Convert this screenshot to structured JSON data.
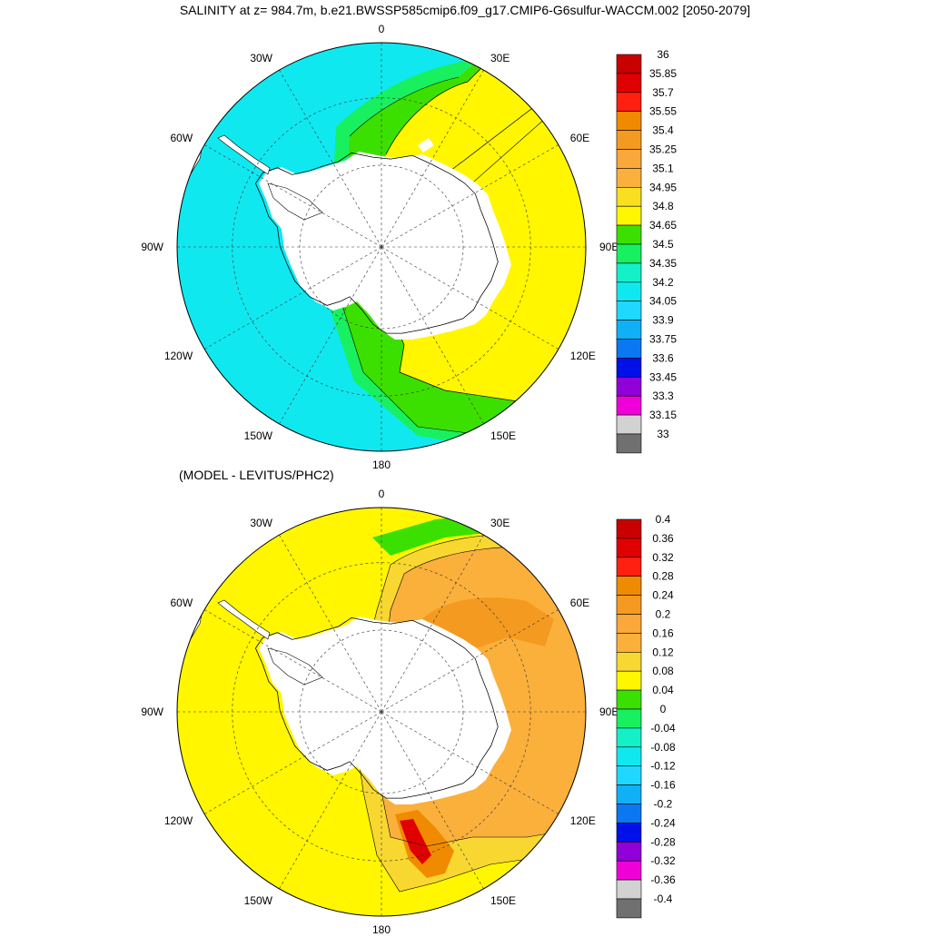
{
  "title": "SALINITY at z= 984.7m, b.e21.BWSSP585cmip6.f09_g17.CMIP6-G6sulfur-WACCM.002 [2050-2079]",
  "subtitle": "(MODEL - LEVITUS/PHC2)",
  "longitude_labels": [
    "0",
    "30E",
    "60E",
    "90E",
    "120E",
    "150E",
    "180",
    "150W",
    "120W",
    "90W",
    "60W",
    "30W"
  ],
  "maps": [
    {
      "name": "salinity",
      "projection": "south-polar-stereographic",
      "colorbar": {
        "labels": [
          "36",
          "35.85",
          "35.7",
          "35.55",
          "35.4",
          "35.25",
          "35.1",
          "34.95",
          "34.8",
          "34.65",
          "34.5",
          "34.35",
          "34.2",
          "34.05",
          "33.9",
          "33.75",
          "33.6",
          "33.45",
          "33.3",
          "33.15",
          "33"
        ],
        "colors": [
          "#c80000",
          "#e00000",
          "#ff2010",
          "#f08a00",
          "#f59a20",
          "#fba83a",
          "#fbb03c",
          "#f8e020",
          "#fff600",
          "#3ce000",
          "#18f060",
          "#14f0c8",
          "#10e8f0",
          "#20d8ff",
          "#10b0f8",
          "#0a78f0",
          "#0010e8",
          "#9000d8",
          "#f000d8",
          "#d2d2d2",
          "#707070"
        ]
      }
    },
    {
      "name": "difference",
      "projection": "south-polar-stereographic",
      "colorbar": {
        "labels": [
          "0.4",
          "0.36",
          "0.32",
          "0.28",
          "0.24",
          "0.2",
          "0.16",
          "0.12",
          "0.08",
          "0.04",
          "0",
          "-0.04",
          "-0.08",
          "-0.12",
          "-0.16",
          "-0.2",
          "-0.24",
          "-0.28",
          "-0.32",
          "-0.36",
          "-0.4"
        ],
        "colors": [
          "#c80000",
          "#e00000",
          "#ff2010",
          "#f08a00",
          "#f59a20",
          "#fba83a",
          "#fbb03c",
          "#f8d830",
          "#fff600",
          "#3ce000",
          "#18f060",
          "#14f0c8",
          "#10e8f0",
          "#20d8ff",
          "#10b0f8",
          "#0a78f0",
          "#0010e8",
          "#9000d8",
          "#f000d8",
          "#d2d2d2",
          "#707070"
        ]
      }
    }
  ]
}
